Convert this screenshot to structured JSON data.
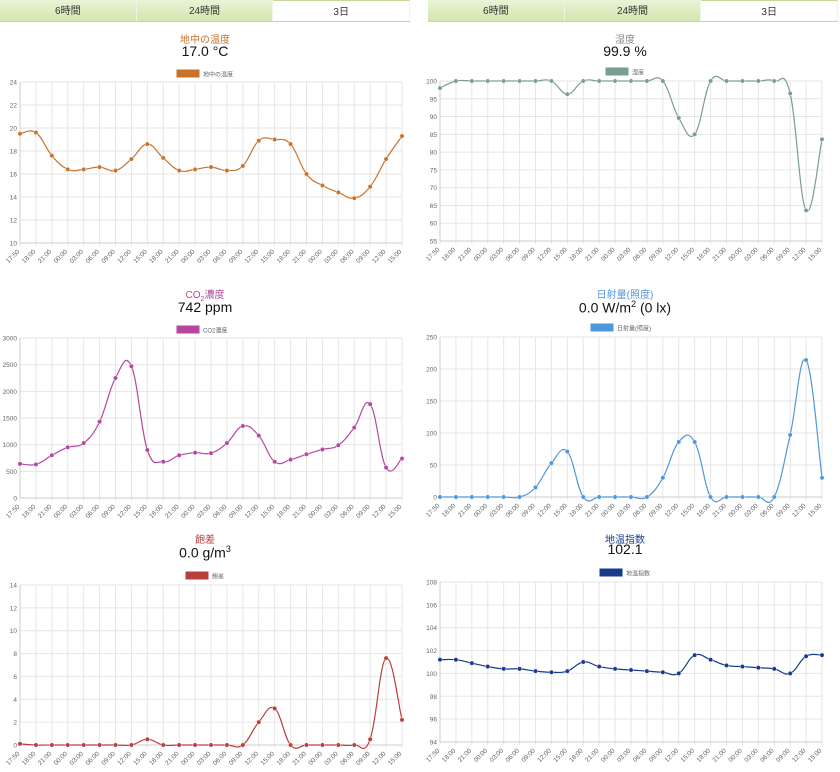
{
  "tabs_left": {
    "items": [
      "6時間",
      "24時間",
      "3日"
    ],
    "active": 2
  },
  "tabs_right": {
    "items": [
      "6時間",
      "24時間",
      "3日"
    ],
    "active": 2
  },
  "x_tick_labels": [
    "17:50",
    "18:00",
    "21:00",
    "00:00",
    "03:00",
    "06:00",
    "09:00",
    "12:00",
    "15:00",
    "18:00",
    "21:00",
    "00:00",
    "03:00",
    "06:00",
    "09:00",
    "12:00",
    "15:00",
    "18:00",
    "21:00",
    "00:00",
    "03:00",
    "06:00",
    "09:00",
    "12:00",
    "15:00"
  ],
  "charts": [
    {
      "id": "soil",
      "title": "地中の温度",
      "value_text": "17.0 °C",
      "legend": "地中の温度",
      "color": "#c9722a",
      "chart_data": {
        "type": "line",
        "ylim": [
          10,
          24
        ],
        "y_ticks": [
          10,
          12,
          14,
          16,
          18,
          20,
          22,
          24
        ],
        "series": [
          {
            "name": "地中の温度",
            "values": [
              19.5,
              19.6,
              17.6,
              16.4,
              16.4,
              16.6,
              16.3,
              17.3,
              18.6,
              17.4,
              16.3,
              16.4,
              16.6,
              16.3,
              16.7,
              18.9,
              19.0,
              18.6,
              16.0,
              15.0,
              14.4,
              13.9,
              14.9,
              17.3,
              19.3
            ]
          }
        ]
      }
    },
    {
      "id": "humidity",
      "title": "湿度",
      "value_text": "99.9 %",
      "legend": "湿度",
      "color": "#7b9e94",
      "chart_data": {
        "type": "line",
        "ylim": [
          55,
          100
        ],
        "y_ticks": [
          55,
          60,
          65,
          70,
          75,
          80,
          85,
          90,
          95,
          100
        ],
        "series": [
          {
            "name": "湿度",
            "values": [
              98.0,
              100,
              100,
              100,
              100,
              100,
              100,
              100,
              96.3,
              100,
              100,
              100,
              100,
              100,
              100,
              89.6,
              85.0,
              100,
              100,
              100,
              100,
              100,
              96.5,
              63.6,
              83.6
            ]
          }
        ]
      }
    },
    {
      "id": "co2",
      "title": "CO2濃度",
      "value_text": "742 ppm",
      "legend": "CO2濃度",
      "color": "#b5479e",
      "chart_data": {
        "type": "line",
        "ylim": [
          0,
          3000
        ],
        "y_ticks": [
          0,
          500,
          1000,
          1500,
          2000,
          2500,
          3000
        ],
        "series": [
          {
            "name": "CO2濃度",
            "values": [
              640,
              630,
              800,
              950,
              1030,
              1430,
              2250,
              2470,
              900,
              680,
              800,
              850,
              840,
              1030,
              1350,
              1170,
              680,
              720,
              820,
              910,
              990,
              1320,
              1760,
              570,
              740
            ]
          }
        ]
      }
    },
    {
      "id": "solar",
      "title": "日射量(照度)",
      "value_text": "0.0 W/m2 (0 lx)",
      "legend": "日射量(照度)",
      "color": "#4f97dc",
      "chart_data": {
        "type": "line",
        "ylim": [
          0,
          250
        ],
        "y_ticks": [
          0,
          50,
          100,
          150,
          200,
          250
        ],
        "series": [
          {
            "name": "日射量(照度)",
            "values": [
              0,
              0,
              0,
              0,
              0,
              0,
              15,
              53,
              71,
              0,
              0,
              0,
              0,
              0,
              30,
              86,
              86,
              0,
              0,
              0,
              0,
              0,
              97,
              214,
              30
            ]
          }
        ]
      }
    },
    {
      "id": "deficit",
      "title": "飽差",
      "value_text": "0.0 g/m3",
      "legend": "飽差",
      "color": "#b8403c",
      "chart_data": {
        "type": "line",
        "ylim": [
          0,
          14
        ],
        "y_ticks": [
          0,
          2,
          4,
          6,
          8,
          10,
          12,
          14
        ],
        "series": [
          {
            "name": "飽差",
            "values": [
              0.1,
              0,
              0,
              0,
              0,
              0,
              0,
              0,
              0.5,
              0,
              0,
              0,
              0,
              0,
              0,
              2.0,
              3.2,
              0,
              0,
              0,
              0,
              0,
              0.5,
              7.6,
              2.2
            ]
          }
        ]
      }
    },
    {
      "id": "thi",
      "title": "地温指数",
      "value_text": "102.1",
      "legend": "地温指数",
      "color": "#173a8c",
      "chart_data": {
        "type": "line",
        "ylim": [
          94,
          108
        ],
        "y_ticks": [
          94,
          96,
          98,
          100,
          102,
          104,
          106,
          108
        ],
        "series": [
          {
            "name": "地温指数",
            "values": [
              101.2,
              101.2,
              100.9,
              100.6,
              100.4,
              100.4,
              100.2,
              100.1,
              100.2,
              101.0,
              100.6,
              100.4,
              100.3,
              100.2,
              100.1,
              100.0,
              101.6,
              101.2,
              100.7,
              100.6,
              100.5,
              100.4,
              100.0,
              101.5,
              101.6
            ]
          }
        ]
      }
    }
  ]
}
